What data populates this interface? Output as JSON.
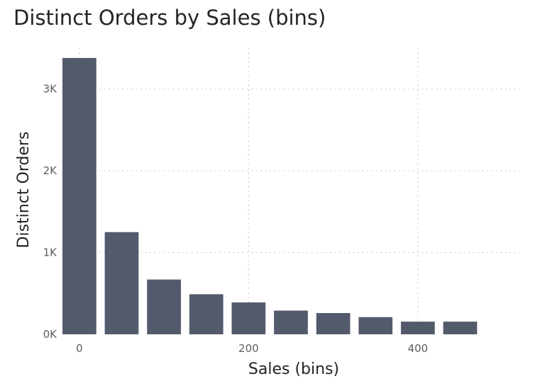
{
  "chart_data": {
    "type": "bar",
    "title": "Distinct Orders by Sales (bins)",
    "xlabel": "Sales (bins)",
    "ylabel": "Distinct Orders",
    "bin_width": 50,
    "x": [
      0,
      50,
      100,
      150,
      200,
      250,
      300,
      350,
      400,
      450
    ],
    "values": [
      3380,
      1250,
      670,
      490,
      390,
      290,
      260,
      210,
      155,
      155
    ],
    "xlim": [
      -20,
      520
    ],
    "ylim": [
      0,
      3500
    ],
    "x_ticks": [
      0,
      200,
      400
    ],
    "x_tick_labels": [
      "0",
      "200",
      "400"
    ],
    "y_ticks": [
      0,
      1000,
      2000,
      3000
    ],
    "y_tick_labels": [
      "0K",
      "1K",
      "2K",
      "3K"
    ],
    "grid": true,
    "colors": {
      "bar": "#535a6c",
      "grid": "#c8c6c4"
    }
  }
}
